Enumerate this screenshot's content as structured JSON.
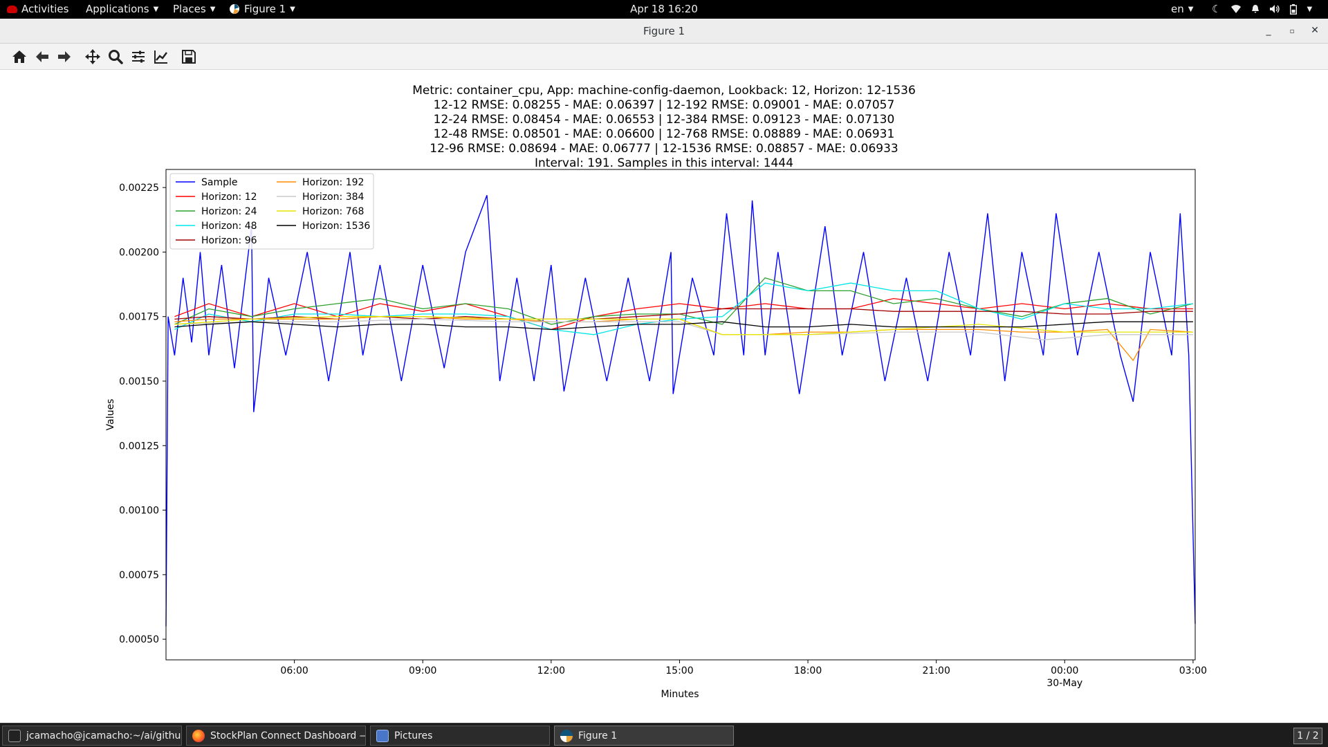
{
  "topbar": {
    "activities": "Activities",
    "applications": "Applications",
    "places": "Places",
    "app_menu": "Figure 1",
    "clock": "Apr 18  16:20",
    "language": "en"
  },
  "window": {
    "title": "Figure 1"
  },
  "toolbar": {
    "tools": [
      "home-icon",
      "back-icon",
      "forward-icon",
      "pan-icon",
      "zoom-icon",
      "configure-subplots-icon",
      "edit-axis-icon",
      "save-icon"
    ]
  },
  "chart_data": {
    "type": "line",
    "title_lines": [
      "Metric: container_cpu, App: machine-config-daemon, Lookback: 12, Horizon: 12-1536",
      "12-12 RMSE: 0.08255 - MAE: 0.06397 | 12-192 RMSE: 0.09001 - MAE: 0.07057",
      "12-24 RMSE: 0.08454 - MAE: 0.06553 | 12-384 RMSE: 0.09123 - MAE: 0.07130",
      "12-48 RMSE: 0.08501 - MAE: 0.06600 | 12-768 RMSE: 0.08889 - MAE: 0.06931",
      "12-96 RMSE: 0.08694 - MAE: 0.06777 | 12-1536 RMSE: 0.08857 - MAE: 0.06933",
      "Interval: 191. Samples in this interval: 1444"
    ],
    "xlabel": "Minutes",
    "ylabel": "Values",
    "ylim": [
      0.00042,
      0.00232
    ],
    "x_ticks": [
      {
        "label": "06:00",
        "hour": 6
      },
      {
        "label": "09:00",
        "hour": 9
      },
      {
        "label": "12:00",
        "hour": 12
      },
      {
        "label": "15:00",
        "hour": 15
      },
      {
        "label": "18:00",
        "hour": 18
      },
      {
        "label": "21:00",
        "hour": 21
      },
      {
        "label": "00:00",
        "sublabel": "30-May",
        "hour": 24
      },
      {
        "label": "03:00",
        "hour": 27
      }
    ],
    "xlim_hours": [
      3.0,
      27.05
    ],
    "y_ticks": [
      {
        "label": "0.00050",
        "value": 0.0005
      },
      {
        "label": "0.00075",
        "value": 0.00075
      },
      {
        "label": "0.00100",
        "value": 0.001
      },
      {
        "label": "0.00125",
        "value": 0.00125
      },
      {
        "label": "0.00150",
        "value": 0.0015
      },
      {
        "label": "0.00175",
        "value": 0.00175
      },
      {
        "label": "0.00200",
        "value": 0.002
      },
      {
        "label": "0.00225",
        "value": 0.00225
      }
    ],
    "legend_position": "top-left",
    "grid": false,
    "series": [
      {
        "name": "Sample",
        "color": "#0000ff",
        "points": [
          [
            3.0,
            0.00055
          ],
          [
            3.05,
            0.00175
          ],
          [
            3.2,
            0.0016
          ],
          [
            3.4,
            0.0019
          ],
          [
            3.6,
            0.00165
          ],
          [
            3.8,
            0.002
          ],
          [
            4.0,
            0.0016
          ],
          [
            4.3,
            0.00195
          ],
          [
            4.6,
            0.00155
          ],
          [
            5.0,
            0.0021
          ],
          [
            5.05,
            0.00138
          ],
          [
            5.4,
            0.0019
          ],
          [
            5.8,
            0.0016
          ],
          [
            6.3,
            0.002
          ],
          [
            6.8,
            0.0015
          ],
          [
            7.3,
            0.002
          ],
          [
            7.6,
            0.0016
          ],
          [
            8.0,
            0.00195
          ],
          [
            8.5,
            0.0015
          ],
          [
            9.0,
            0.00195
          ],
          [
            9.5,
            0.00155
          ],
          [
            10.0,
            0.002
          ],
          [
            10.5,
            0.00222
          ],
          [
            10.8,
            0.0015
          ],
          [
            11.2,
            0.0019
          ],
          [
            11.6,
            0.0015
          ],
          [
            12.0,
            0.00195
          ],
          [
            12.3,
            0.00146
          ],
          [
            12.8,
            0.0019
          ],
          [
            13.3,
            0.0015
          ],
          [
            13.8,
            0.0019
          ],
          [
            14.3,
            0.0015
          ],
          [
            14.8,
            0.002
          ],
          [
            14.85,
            0.00145
          ],
          [
            15.3,
            0.0019
          ],
          [
            15.8,
            0.0016
          ],
          [
            16.1,
            0.00215
          ],
          [
            16.5,
            0.0016
          ],
          [
            16.7,
            0.0022
          ],
          [
            17.0,
            0.0016
          ],
          [
            17.3,
            0.002
          ],
          [
            17.8,
            0.00145
          ],
          [
            18.4,
            0.0021
          ],
          [
            18.8,
            0.0016
          ],
          [
            19.3,
            0.002
          ],
          [
            19.8,
            0.0015
          ],
          [
            20.3,
            0.0019
          ],
          [
            20.8,
            0.0015
          ],
          [
            21.3,
            0.002
          ],
          [
            21.8,
            0.0016
          ],
          [
            22.2,
            0.00215
          ],
          [
            22.6,
            0.0015
          ],
          [
            23.0,
            0.002
          ],
          [
            23.5,
            0.0016
          ],
          [
            23.8,
            0.00215
          ],
          [
            24.3,
            0.0016
          ],
          [
            24.8,
            0.002
          ],
          [
            25.3,
            0.0016
          ],
          [
            25.6,
            0.00142
          ],
          [
            26.0,
            0.002
          ],
          [
            26.5,
            0.0016
          ],
          [
            26.7,
            0.00215
          ],
          [
            26.9,
            0.0016
          ],
          [
            27.05,
            0.00056
          ]
        ]
      },
      {
        "name": "Horizon: 12",
        "color": "#ff0000",
        "points": [
          [
            3.2,
            0.00175
          ],
          [
            4.0,
            0.0018
          ],
          [
            5.0,
            0.00175
          ],
          [
            6.0,
            0.0018
          ],
          [
            7.0,
            0.00175
          ],
          [
            8.0,
            0.0018
          ],
          [
            9.0,
            0.00177
          ],
          [
            10.0,
            0.0018
          ],
          [
            11.0,
            0.00175
          ],
          [
            12.0,
            0.0017
          ],
          [
            13.0,
            0.00175
          ],
          [
            14.0,
            0.00178
          ],
          [
            15.0,
            0.0018
          ],
          [
            16.0,
            0.00178
          ],
          [
            17.0,
            0.0018
          ],
          [
            18.0,
            0.00178
          ],
          [
            19.0,
            0.00178
          ],
          [
            20.0,
            0.00182
          ],
          [
            21.0,
            0.0018
          ],
          [
            22.0,
            0.00178
          ],
          [
            23.0,
            0.0018
          ],
          [
            24.0,
            0.00178
          ],
          [
            25.0,
            0.0018
          ],
          [
            26.0,
            0.00178
          ],
          [
            27.0,
            0.00178
          ]
        ]
      },
      {
        "name": "Horizon: 24",
        "color": "#2ca02c",
        "points": [
          [
            3.2,
            0.00172
          ],
          [
            4.0,
            0.00178
          ],
          [
            5.0,
            0.00175
          ],
          [
            6.0,
            0.00178
          ],
          [
            7.0,
            0.0018
          ],
          [
            8.0,
            0.00182
          ],
          [
            9.0,
            0.00178
          ],
          [
            10.0,
            0.0018
          ],
          [
            11.0,
            0.00178
          ],
          [
            12.0,
            0.00172
          ],
          [
            13.0,
            0.00175
          ],
          [
            14.0,
            0.00176
          ],
          [
            15.0,
            0.00176
          ],
          [
            16.0,
            0.00172
          ],
          [
            17.0,
            0.0019
          ],
          [
            18.0,
            0.00185
          ],
          [
            19.0,
            0.00185
          ],
          [
            20.0,
            0.0018
          ],
          [
            21.0,
            0.00182
          ],
          [
            22.0,
            0.00178
          ],
          [
            23.0,
            0.00175
          ],
          [
            24.0,
            0.0018
          ],
          [
            25.0,
            0.00182
          ],
          [
            26.0,
            0.00176
          ],
          [
            27.0,
            0.0018
          ]
        ]
      },
      {
        "name": "Horizon: 48",
        "color": "#00e5e5",
        "points": [
          [
            3.2,
            0.0017
          ],
          [
            4.0,
            0.00176
          ],
          [
            5.0,
            0.00173
          ],
          [
            6.0,
            0.00176
          ],
          [
            7.0,
            0.00176
          ],
          [
            8.0,
            0.00175
          ],
          [
            9.0,
            0.00176
          ],
          [
            10.0,
            0.00176
          ],
          [
            11.0,
            0.00175
          ],
          [
            12.0,
            0.0017
          ],
          [
            13.0,
            0.00168
          ],
          [
            14.0,
            0.00172
          ],
          [
            15.0,
            0.00174
          ],
          [
            16.0,
            0.00175
          ],
          [
            17.0,
            0.00188
          ],
          [
            18.0,
            0.00185
          ],
          [
            19.0,
            0.00188
          ],
          [
            20.0,
            0.00185
          ],
          [
            21.0,
            0.00185
          ],
          [
            22.0,
            0.00178
          ],
          [
            23.0,
            0.00174
          ],
          [
            24.0,
            0.0018
          ],
          [
            25.0,
            0.00178
          ],
          [
            26.0,
            0.00178
          ],
          [
            27.0,
            0.0018
          ]
        ]
      },
      {
        "name": "Horizon: 96",
        "color": "#a00000",
        "points": [
          [
            3.2,
            0.00174
          ],
          [
            4.0,
            0.00175
          ],
          [
            5.0,
            0.00174
          ],
          [
            6.0,
            0.00175
          ],
          [
            7.0,
            0.00174
          ],
          [
            8.0,
            0.00175
          ],
          [
            9.0,
            0.00174
          ],
          [
            10.0,
            0.00175
          ],
          [
            11.0,
            0.00174
          ],
          [
            12.0,
            0.00174
          ],
          [
            13.0,
            0.00174
          ],
          [
            14.0,
            0.00175
          ],
          [
            15.0,
            0.00176
          ],
          [
            16.0,
            0.00178
          ],
          [
            17.0,
            0.00178
          ],
          [
            18.0,
            0.00178
          ],
          [
            19.0,
            0.00178
          ],
          [
            20.0,
            0.00177
          ],
          [
            21.0,
            0.00177
          ],
          [
            22.0,
            0.00177
          ],
          [
            23.0,
            0.00177
          ],
          [
            24.0,
            0.00176
          ],
          [
            25.0,
            0.00176
          ],
          [
            26.0,
            0.00177
          ],
          [
            27.0,
            0.00177
          ]
        ]
      },
      {
        "name": "Horizon: 192",
        "color": "#ff8c00",
        "points": [
          [
            3.2,
            0.00173
          ],
          [
            4.0,
            0.00174
          ],
          [
            5.0,
            0.00174
          ],
          [
            6.0,
            0.00174
          ],
          [
            7.0,
            0.00174
          ],
          [
            8.0,
            0.00175
          ],
          [
            9.0,
            0.00175
          ],
          [
            10.0,
            0.00174
          ],
          [
            11.0,
            0.00174
          ],
          [
            12.0,
            0.00173
          ],
          [
            13.0,
            0.00173
          ],
          [
            14.0,
            0.00174
          ],
          [
            15.0,
            0.00174
          ],
          [
            16.0,
            0.00168
          ],
          [
            17.0,
            0.00168
          ],
          [
            18.0,
            0.00169
          ],
          [
            19.0,
            0.00169
          ],
          [
            20.0,
            0.0017
          ],
          [
            21.0,
            0.0017
          ],
          [
            22.0,
            0.0017
          ],
          [
            23.0,
            0.00169
          ],
          [
            24.0,
            0.00169
          ],
          [
            25.0,
            0.0017
          ],
          [
            25.6,
            0.00158
          ],
          [
            26.0,
            0.0017
          ],
          [
            27.0,
            0.00169
          ]
        ]
      },
      {
        "name": "Horizon: 384",
        "color": "#c8c8c8",
        "points": [
          [
            3.2,
            0.00172
          ],
          [
            5.0,
            0.00173
          ],
          [
            7.0,
            0.00173
          ],
          [
            9.0,
            0.00174
          ],
          [
            11.0,
            0.00173
          ],
          [
            13.0,
            0.00173
          ],
          [
            15.0,
            0.00173
          ],
          [
            16.0,
            0.00168
          ],
          [
            18.0,
            0.00168
          ],
          [
            20.0,
            0.00169
          ],
          [
            22.0,
            0.00169
          ],
          [
            23.5,
            0.00166
          ],
          [
            25.0,
            0.00168
          ],
          [
            27.0,
            0.00168
          ]
        ]
      },
      {
        "name": "Horizon: 768",
        "color": "#e6e600",
        "points": [
          [
            3.2,
            0.00172
          ],
          [
            5.0,
            0.00174
          ],
          [
            7.0,
            0.00175
          ],
          [
            9.0,
            0.00175
          ],
          [
            11.0,
            0.00174
          ],
          [
            13.0,
            0.00174
          ],
          [
            15.0,
            0.00174
          ],
          [
            16.0,
            0.00168
          ],
          [
            18.0,
            0.00168
          ],
          [
            20.0,
            0.0017
          ],
          [
            22.0,
            0.00172
          ],
          [
            24.0,
            0.00169
          ],
          [
            26.0,
            0.00169
          ],
          [
            27.0,
            0.00169
          ]
        ]
      },
      {
        "name": "Horizon: 1536",
        "color": "#000000",
        "points": [
          [
            3.2,
            0.00171
          ],
          [
            4.0,
            0.00172
          ],
          [
            5.0,
            0.00173
          ],
          [
            6.0,
            0.00172
          ],
          [
            7.0,
            0.00171
          ],
          [
            8.0,
            0.00172
          ],
          [
            9.0,
            0.00172
          ],
          [
            10.0,
            0.00171
          ],
          [
            11.0,
            0.00171
          ],
          [
            12.0,
            0.0017
          ],
          [
            13.0,
            0.00171
          ],
          [
            14.0,
            0.00172
          ],
          [
            15.0,
            0.00172
          ],
          [
            16.0,
            0.00173
          ],
          [
            17.0,
            0.00171
          ],
          [
            18.0,
            0.00171
          ],
          [
            19.0,
            0.00172
          ],
          [
            20.0,
            0.00171
          ],
          [
            21.0,
            0.00171
          ],
          [
            22.0,
            0.00171
          ],
          [
            23.0,
            0.00171
          ],
          [
            24.0,
            0.00172
          ],
          [
            25.0,
            0.00173
          ],
          [
            26.0,
            0.00173
          ],
          [
            27.0,
            0.00173
          ]
        ]
      }
    ]
  },
  "taskbar": {
    "tasks": [
      {
        "label": "jcamacho@jcamacho:~/ai/github/...",
        "icon": "terminal-icon"
      },
      {
        "label": "StockPlan Connect Dashboard — ...",
        "icon": "firefox-icon"
      },
      {
        "label": "Pictures",
        "icon": "files-icon"
      },
      {
        "label": "Figure 1",
        "icon": "matplotlib-icon"
      }
    ],
    "workspace": "1 / 2"
  }
}
